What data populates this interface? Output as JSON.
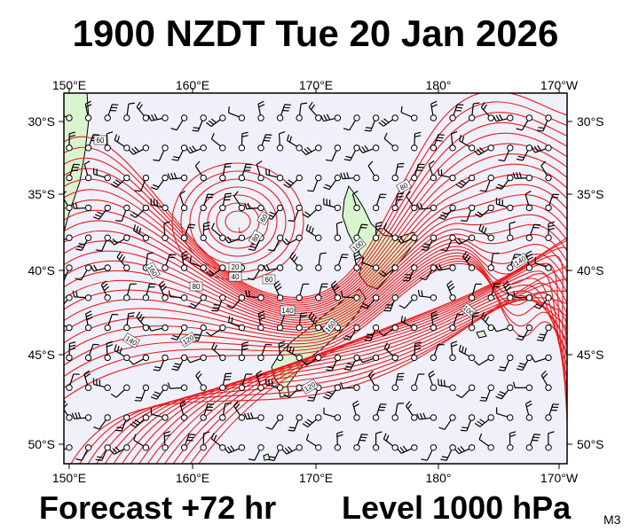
{
  "header": {
    "title": "1900 NZDT Tue 20 Jan 2026"
  },
  "footer": {
    "forecast": "Forecast +72 hr",
    "level": "Level 1000 hPa",
    "code": "M3"
  },
  "map": {
    "lon_labels": [
      "150°E",
      "160°E",
      "170°E",
      "180°",
      "170°W"
    ],
    "lat_labels": [
      "30°S",
      "35°S",
      "40°S",
      "45°S",
      "50°S"
    ],
    "contour_color": "#e81c1c",
    "land_color": "#d8f5d0",
    "sea_color": "#f0f0fb",
    "low_marker": "L",
    "contour_labels": [
      "60",
      "80",
      "100",
      "120",
      "140",
      "160",
      "20",
      "40",
      "60",
      "80",
      "120",
      "140",
      "160",
      "80",
      "60",
      "100",
      "140"
    ]
  }
}
